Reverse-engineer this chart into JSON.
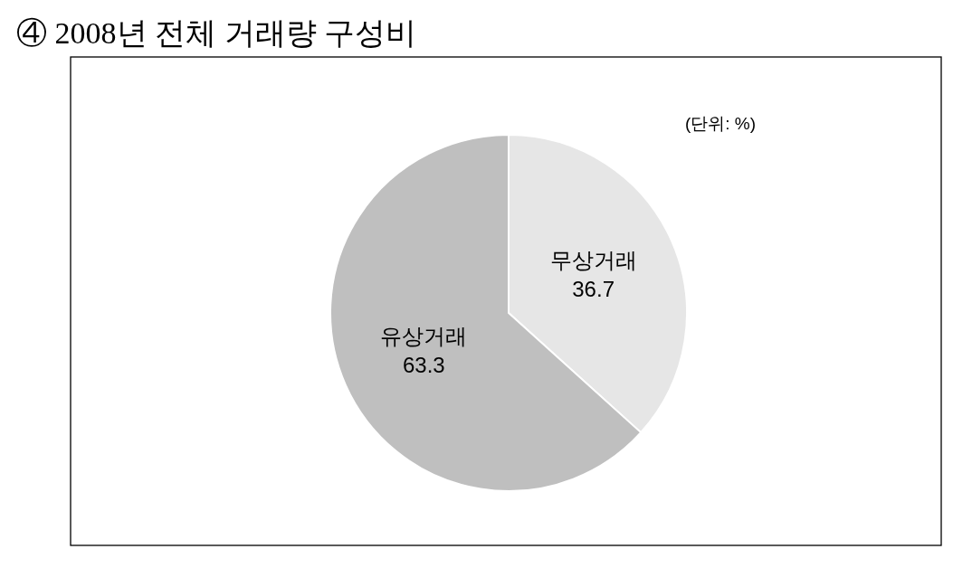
{
  "chart_data": {
    "type": "pie",
    "title": "④ 2008년 전체 거래량 구성비",
    "categories": [
      "무상거래",
      "유상거래"
    ],
    "values": [
      36.7,
      63.3
    ],
    "colors": [
      "#e6e6e6",
      "#bfbfbf"
    ],
    "data_labels": true,
    "annotations": [
      "(단위: %)"
    ]
  }
}
